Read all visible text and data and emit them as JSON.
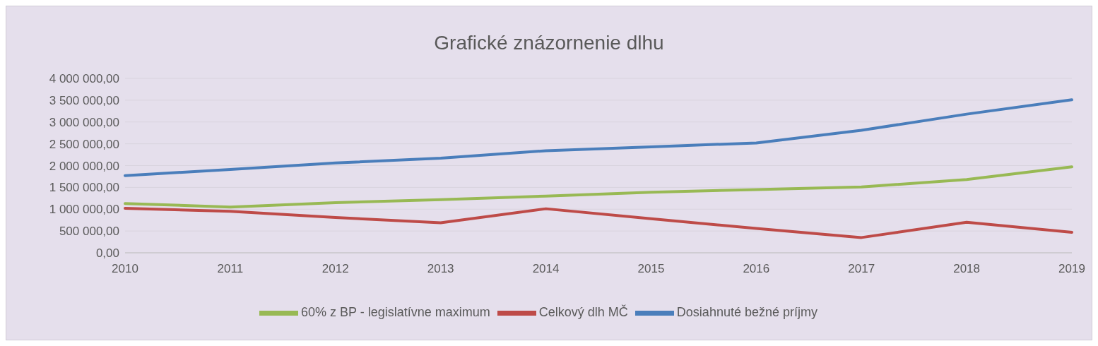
{
  "chart_data": {
    "type": "line",
    "title": "Grafické znázornenie dlhu",
    "categories": [
      "2010",
      "2011",
      "2012",
      "2013",
      "2014",
      "2015",
      "2016",
      "2017",
      "2018",
      "2019"
    ],
    "series": [
      {
        "name": "Dosiahnuté bežné príjmy",
        "color": "#4a7ebb",
        "values": [
          1770000,
          1910000,
          2060000,
          2170000,
          2340000,
          2430000,
          2520000,
          2810000,
          3180000,
          3510000
        ]
      },
      {
        "name": "Celkový dlh MČ",
        "color": "#be4b48",
        "values": [
          1020000,
          950000,
          810000,
          690000,
          1010000,
          780000,
          560000,
          350000,
          700000,
          470000
        ]
      },
      {
        "name": "60% z BP - legislatívne maximum",
        "color": "#98b954",
        "values": [
          1130000,
          1050000,
          1150000,
          1220000,
          1300000,
          1390000,
          1450000,
          1510000,
          1680000,
          1970000
        ]
      }
    ],
    "ylim": [
      0,
      4000000
    ],
    "yticks": [
      {
        "value": 0,
        "label": "0,00"
      },
      {
        "value": 500000,
        "label": "500 000,00"
      },
      {
        "value": 1000000,
        "label": "1 000 000,00"
      },
      {
        "value": 1500000,
        "label": "1 500 000,00"
      },
      {
        "value": 2000000,
        "label": "2 000 000,00"
      },
      {
        "value": 2500000,
        "label": "2 500 000,00"
      },
      {
        "value": 3000000,
        "label": "3 000 000,00"
      },
      {
        "value": 3500000,
        "label": "3 500 000,00"
      },
      {
        "value": 4000000,
        "label": "4 000 000,00"
      }
    ],
    "grid": "y",
    "legend": "bottom",
    "marker": "none",
    "line_style": "solid"
  }
}
